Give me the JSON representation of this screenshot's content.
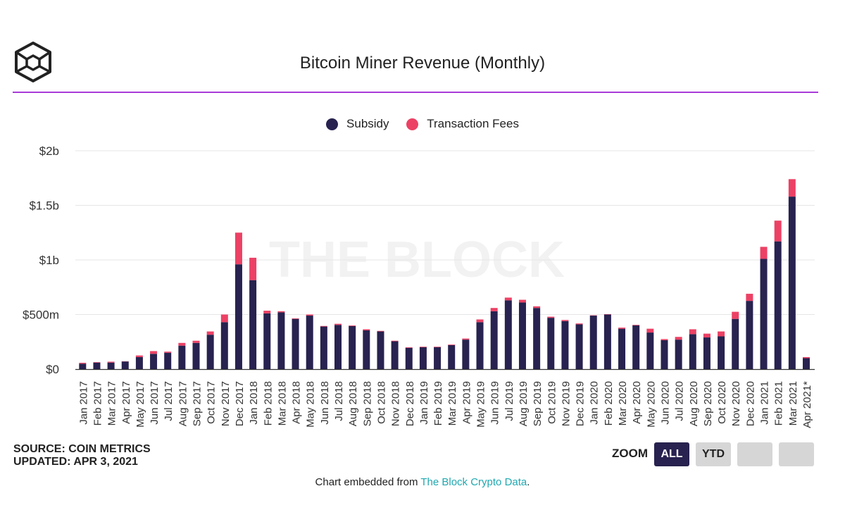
{
  "header": {
    "title": "Bitcoin Miner Revenue (Monthly)"
  },
  "watermark": "THE BLOCK",
  "colors": {
    "subsidy": "#27224f",
    "fees": "#ec4165",
    "accent": "#a93bd9",
    "link": "#1fa8b0"
  },
  "legend": {
    "subsidy": "Subsidy",
    "fees": "Transaction Fees"
  },
  "footer_info": {
    "source": "SOURCE: COIN METRICS",
    "updated": "UPDATED: APR 3, 2021"
  },
  "zoom": {
    "label": "ZOOM",
    "buttons": [
      "ALL",
      "YTD",
      "",
      ""
    ],
    "active": "ALL"
  },
  "embed": {
    "prefix": "Chart embedded from ",
    "link_text": "The Block Crypto Data",
    "suffix": "."
  },
  "chart_data": {
    "type": "bar",
    "stacked": true,
    "title": "Bitcoin Miner Revenue (Monthly)",
    "xlabel": "",
    "ylabel": "",
    "ylim": [
      0,
      2000
    ],
    "yunit": "millions USD",
    "yticks": [
      {
        "value": 0,
        "label": "$0"
      },
      {
        "value": 500,
        "label": "$500m"
      },
      {
        "value": 1000,
        "label": "$1b"
      },
      {
        "value": 1500,
        "label": "$1.5b"
      },
      {
        "value": 2000,
        "label": "$2b"
      }
    ],
    "categories": [
      "Jan 2017",
      "Feb 2017",
      "Mar 2017",
      "Apr 2017",
      "May 2017",
      "Jun 2017",
      "Jul 2017",
      "Aug 2017",
      "Sep 2017",
      "Oct 2017",
      "Nov 2017",
      "Dec 2017",
      "Jan 2018",
      "Feb 2018",
      "Mar 2018",
      "Apr 2018",
      "May 2018",
      "Jun 2018",
      "Jul 2018",
      "Aug 2018",
      "Sep 2018",
      "Oct 2018",
      "Nov 2018",
      "Dec 2018",
      "Jan 2019",
      "Feb 2019",
      "Mar 2019",
      "Apr 2019",
      "May 2019",
      "Jun 2019",
      "Jul 2019",
      "Aug 2019",
      "Sep 2019",
      "Oct 2019",
      "Nov 2019",
      "Dec 2019",
      "Jan 2020",
      "Feb 2020",
      "Mar 2020",
      "Apr 2020",
      "May 2020",
      "Jun 2020",
      "Jul 2020",
      "Aug 2020",
      "Sep 2020",
      "Oct 2020",
      "Nov 2020",
      "Dec 2020",
      "Jan 2021",
      "Feb 2021",
      "Mar 2021",
      "Apr 2021*"
    ],
    "series": [
      {
        "name": "Subsidy",
        "values": [
          50,
          60,
          60,
          70,
          110,
          140,
          150,
          215,
          240,
          315,
          430,
          960,
          815,
          510,
          520,
          460,
          490,
          390,
          405,
          395,
          355,
          345,
          255,
          195,
          200,
          200,
          220,
          270,
          430,
          530,
          630,
          610,
          560,
          470,
          440,
          410,
          490,
          500,
          370,
          400,
          335,
          265,
          270,
          320,
          290,
          300,
          460,
          625,
          1010,
          1170,
          1580,
          100
        ]
      },
      {
        "name": "Transaction Fees",
        "values": [
          8,
          4,
          8,
          2,
          15,
          25,
          10,
          25,
          20,
          30,
          70,
          290,
          205,
          25,
          10,
          5,
          10,
          5,
          10,
          5,
          10,
          5,
          5,
          5,
          5,
          5,
          5,
          10,
          25,
          30,
          25,
          25,
          15,
          10,
          10,
          8,
          3,
          3,
          10,
          5,
          35,
          10,
          25,
          45,
          35,
          45,
          65,
          65,
          110,
          190,
          160,
          10
        ]
      }
    ]
  }
}
